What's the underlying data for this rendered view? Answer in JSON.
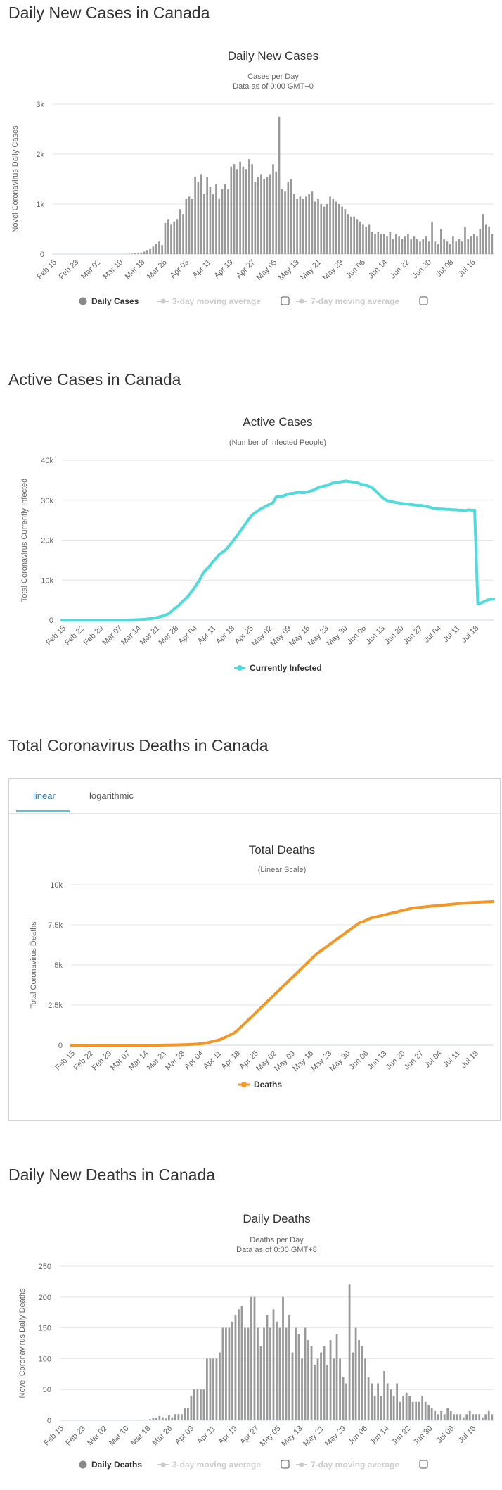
{
  "sections": {
    "daily_cases_heading": "Daily New Cases in Canada",
    "active_heading": "Active Cases in Canada",
    "deaths_heading": "Total Coronavirus Deaths in Canada",
    "daily_deaths_heading": "Daily New Deaths in Canada"
  },
  "tabs": {
    "linear": "linear",
    "logarithmic": "logarithmic",
    "active": "linear"
  },
  "colors": {
    "bars": "#999999",
    "active_line": "#4fdbdb",
    "deaths_line": "#f39623",
    "legend_disabled": "#cccccc",
    "tab_active": "#337ab7"
  },
  "chart_data": [
    {
      "id": "daily_cases",
      "type": "bar",
      "title": "Daily New Cases",
      "subtitle": "Cases per Day",
      "subtitle2": "Data as of 0:00 GMT+0",
      "ylabel": "Novel Coronavirus Daily Cases",
      "ylim": [
        0,
        3000
      ],
      "yticks": [
        0,
        1000,
        2000,
        3000
      ],
      "ytick_labels": [
        "0",
        "1k",
        "2k",
        "3k"
      ],
      "xtick_labels": [
        "Feb 15",
        "Feb 23",
        "Mar 02",
        "Mar 10",
        "Mar 18",
        "Mar 26",
        "Apr 03",
        "Apr 11",
        "Apr 19",
        "Apr 27",
        "May 05",
        "May 13",
        "May 21",
        "May 29",
        "Jun 06",
        "Jun 14",
        "Jun 22",
        "Jun 30",
        "Jul 08",
        "Jul 16"
      ],
      "legend": [
        "Daily Cases",
        "3-day moving average",
        "7-day moving average"
      ],
      "values": [
        0,
        0,
        0,
        0,
        0,
        0,
        0,
        0,
        0,
        0,
        0,
        0,
        0,
        0,
        0,
        0,
        0,
        0,
        0,
        0,
        0,
        0,
        0,
        0,
        2,
        5,
        8,
        15,
        20,
        30,
        50,
        80,
        100,
        150,
        200,
        250,
        180,
        620,
        700,
        600,
        650,
        700,
        900,
        800,
        1100,
        1150,
        1100,
        1550,
        1450,
        1600,
        1200,
        1550,
        1350,
        1200,
        1400,
        1100,
        1300,
        1400,
        1300,
        1750,
        1800,
        1700,
        1850,
        1750,
        1700,
        1900,
        1800,
        1450,
        1550,
        1600,
        1500,
        1550,
        1600,
        1800,
        1650,
        2750,
        1300,
        1250,
        1450,
        1500,
        1200,
        1100,
        1150,
        1100,
        1150,
        1200,
        1250,
        1050,
        1100,
        1000,
        950,
        1000,
        1150,
        1100,
        1050,
        1000,
        950,
        900,
        800,
        750,
        750,
        700,
        650,
        600,
        550,
        600,
        450,
        400,
        450,
        400,
        400,
        350,
        450,
        300,
        400,
        350,
        300,
        350,
        400,
        300,
        350,
        300,
        250,
        300,
        350,
        250,
        650,
        250,
        200,
        500,
        300,
        250,
        200,
        350,
        250,
        300,
        250,
        550,
        300,
        350,
        400,
        350,
        500,
        800,
        600,
        550,
        400
      ]
    },
    {
      "id": "active_cases",
      "type": "line",
      "title": "Active Cases",
      "subtitle": "(Number of Infected People)",
      "ylabel": "Total Coronavirus Currently Infected",
      "ylim": [
        0,
        40000
      ],
      "yticks": [
        0,
        10000,
        20000,
        30000,
        40000
      ],
      "ytick_labels": [
        "0",
        "10k",
        "20k",
        "30k",
        "40k"
      ],
      "xtick_labels": [
        "Feb 15",
        "Feb 22",
        "Feb 29",
        "Mar 07",
        "Mar 14",
        "Mar 21",
        "Mar 28",
        "Apr 04",
        "Apr 11",
        "Apr 18",
        "Apr 25",
        "May 02",
        "May 09",
        "May 16",
        "May 23",
        "May 30",
        "Jun 06",
        "Jun 13",
        "Jun 20",
        "Jun 27",
        "Jul 04",
        "Jul 11",
        "Jul 18"
      ],
      "legend": [
        "Currently Infected"
      ],
      "values": [
        0,
        0,
        0,
        0,
        0,
        0,
        0,
        0,
        0,
        0,
        0,
        0,
        0,
        0,
        0,
        0,
        0,
        0,
        0,
        0,
        0,
        0,
        50,
        70,
        100,
        130,
        180,
        250,
        350,
        450,
        600,
        800,
        1000,
        1300,
        1600,
        2400,
        3000,
        3600,
        4400,
        5200,
        5900,
        7000,
        8000,
        9200,
        10500,
        12000,
        12800,
        13600,
        14700,
        15500,
        16500,
        17000,
        17600,
        18500,
        19500,
        20500,
        21600,
        22700,
        23800,
        24900,
        26000,
        26700,
        27200,
        27800,
        28200,
        28600,
        29000,
        29400,
        30800,
        31000,
        31000,
        31300,
        31600,
        31700,
        31800,
        32000,
        31900,
        31900,
        32100,
        32300,
        32600,
        33000,
        33300,
        33500,
        33700,
        34000,
        34300,
        34500,
        34500,
        34700,
        34800,
        34700,
        34600,
        34500,
        34300,
        34000,
        33900,
        33600,
        33300,
        32800,
        32000,
        31200,
        30500,
        30000,
        29800,
        29600,
        29400,
        29300,
        29200,
        29100,
        29000,
        28900,
        28800,
        28700,
        28700,
        28600,
        28400,
        28200,
        28000,
        27900,
        27800,
        27800,
        27700,
        27700,
        27600,
        27600,
        27500,
        27500,
        27400,
        27600,
        27500,
        27500,
        4000,
        4300,
        4600,
        5000,
        5200,
        5300
      ]
    },
    {
      "id": "total_deaths",
      "type": "line",
      "title": "Total Deaths",
      "subtitle": "(Linear Scale)",
      "ylabel": "Total Coronavirus Deaths",
      "ylim": [
        0,
        10000
      ],
      "yticks": [
        0,
        2500,
        5000,
        7500,
        10000
      ],
      "ytick_labels": [
        "0",
        "2.5k",
        "5k",
        "7.5k",
        "10k"
      ],
      "xtick_labels": [
        "Feb 15",
        "Feb 22",
        "Feb 29",
        "Mar 07",
        "Mar 14",
        "Mar 21",
        "Mar 28",
        "Apr 04",
        "Apr 11",
        "Apr 18",
        "Apr 25",
        "May 02",
        "May 09",
        "May 16",
        "May 23",
        "May 30",
        "Jun 06",
        "Jun 13",
        "Jun 20",
        "Jun 27",
        "Jul 04",
        "Jul 11",
        "Jul 18"
      ],
      "legend": [
        "Deaths"
      ],
      "values": [
        0,
        0,
        0,
        0,
        0,
        0,
        0,
        0,
        0,
        0,
        0,
        0,
        0,
        0,
        0,
        0,
        0,
        0,
        0,
        0,
        0,
        0,
        0,
        0,
        0,
        1,
        1,
        2,
        4,
        8,
        12,
        19,
        24,
        27,
        35,
        40,
        50,
        60,
        70,
        90,
        110,
        150,
        200,
        250,
        300,
        350,
        450,
        550,
        650,
        750,
        900,
        1100,
        1300,
        1500,
        1700,
        1900,
        2100,
        2300,
        2500,
        2700,
        2900,
        3100,
        3300,
        3500,
        3700,
        3900,
        4100,
        4300,
        4500,
        4700,
        4900,
        5100,
        5300,
        5500,
        5700,
        5850,
        6000,
        6150,
        6300,
        6450,
        6600,
        6750,
        6900,
        7050,
        7200,
        7350,
        7500,
        7650,
        7700,
        7800,
        7900,
        7950,
        8000,
        8050,
        8100,
        8150,
        8200,
        8250,
        8300,
        8350,
        8400,
        8450,
        8500,
        8550,
        8570,
        8590,
        8610,
        8630,
        8650,
        8670,
        8690,
        8710,
        8730,
        8750,
        8770,
        8790,
        8810,
        8830,
        8850,
        8870,
        8880,
        8890,
        8900,
        8910,
        8920,
        8930,
        8940,
        8950
      ]
    },
    {
      "id": "daily_deaths",
      "type": "bar",
      "title": "Daily Deaths",
      "subtitle": "Deaths per Day",
      "subtitle2": "Data as of 0:00 GMT+8",
      "ylabel": "Novel Coronavirus Daily Deaths",
      "ylim": [
        0,
        250
      ],
      "yticks": [
        0,
        50,
        100,
        150,
        200,
        250
      ],
      "ytick_labels": [
        "0",
        "50",
        "100",
        "150",
        "200",
        "250"
      ],
      "xtick_labels": [
        "Feb 15",
        "Feb 23",
        "Mar 02",
        "Mar 10",
        "Mar 18",
        "Mar 26",
        "Apr 03",
        "Apr 11",
        "Apr 19",
        "Apr 27",
        "May 05",
        "May 13",
        "May 21",
        "May 29",
        "Jun 06",
        "Jun 14",
        "Jun 22",
        "Jun 30",
        "Jul 08",
        "Jul 16"
      ],
      "legend": [
        "Daily Deaths",
        "3-day moving average",
        "7-day moving average"
      ],
      "values": [
        0,
        0,
        0,
        0,
        0,
        0,
        0,
        0,
        0,
        0,
        0,
        0,
        0,
        0,
        0,
        0,
        0,
        0,
        0,
        0,
        0,
        0,
        0,
        0,
        0,
        1,
        0,
        1,
        2,
        4,
        4,
        7,
        5,
        3,
        8,
        5,
        10,
        10,
        10,
        20,
        20,
        40,
        50,
        50,
        50,
        50,
        100,
        100,
        100,
        100,
        110,
        150,
        150,
        150,
        160,
        170,
        180,
        185,
        150,
        150,
        200,
        200,
        150,
        120,
        150,
        170,
        150,
        180,
        160,
        150,
        200,
        150,
        170,
        110,
        150,
        140,
        100,
        150,
        130,
        120,
        90,
        100,
        110,
        120,
        90,
        130,
        100,
        140,
        100,
        70,
        60,
        220,
        110,
        150,
        130,
        120,
        100,
        70,
        60,
        40,
        60,
        40,
        80,
        60,
        50,
        40,
        60,
        30,
        40,
        45,
        40,
        30,
        30,
        30,
        40,
        30,
        25,
        20,
        15,
        10,
        15,
        10,
        20,
        15,
        10,
        10,
        10,
        5,
        10,
        15,
        10,
        10,
        10,
        5,
        10,
        15,
        10
      ]
    }
  ]
}
